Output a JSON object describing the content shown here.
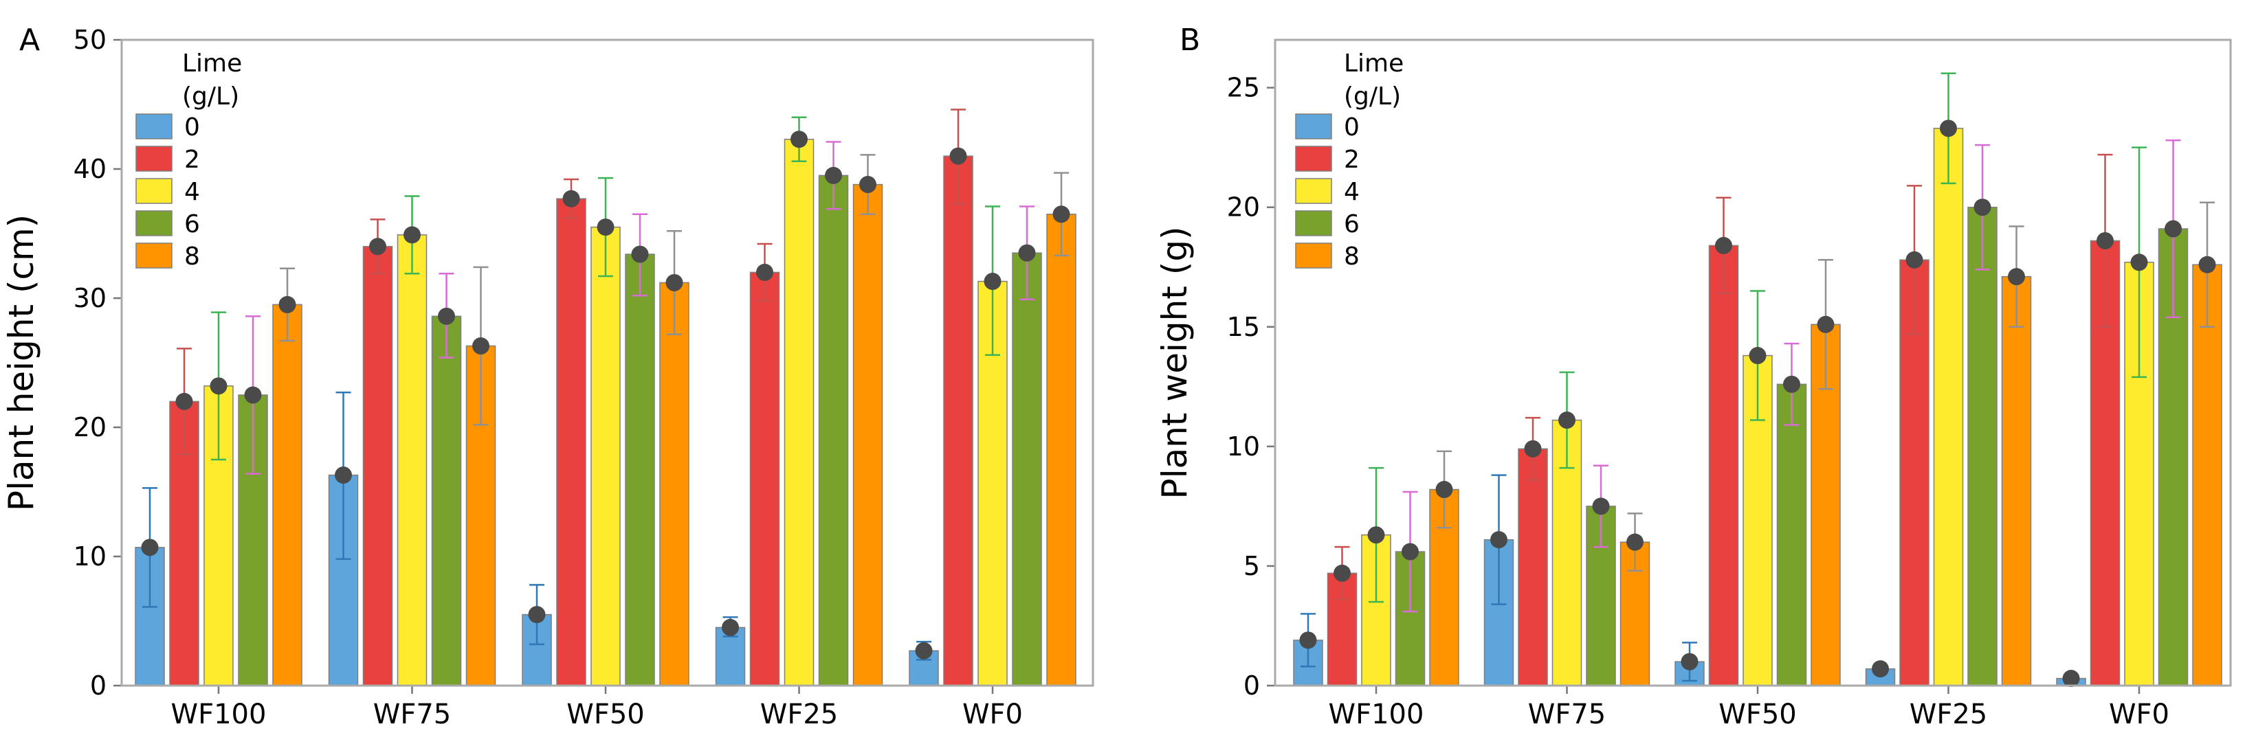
{
  "colors": {
    "lime_0": "#5DA5DA",
    "lime_2": "#E8413F",
    "lime_4": "#FFEB2E",
    "lime_6": "#79A22D",
    "lime_8": "#FF9400",
    "mean_marker": "#4A4A4A",
    "err_0": "#2F78B8",
    "err_2": "#C7504E",
    "err_4": "#3DB453",
    "err_6": "#D96BD6",
    "err_8": "#909090",
    "frame": "#AAAAAA",
    "plot_bg": "#FFFFFF"
  },
  "chart_data": [
    {
      "type": "bar",
      "panel_label": "A",
      "ylabel": "Plant height (cm)",
      "xlabel": "",
      "ylim": [
        0,
        50
      ],
      "yticks": [
        "0",
        "10",
        "20",
        "30",
        "40",
        "50"
      ],
      "categories": [
        "WF100",
        "WF75",
        "WF50",
        "WF25",
        "WF0"
      ],
      "legend": {
        "title_line1": "Lime",
        "title_line2": "(g/L)",
        "placement": "top-left"
      },
      "series": [
        {
          "name": "0",
          "values": [
            10.7,
            16.3,
            5.5,
            4.5,
            2.7
          ],
          "err_low": [
            6.1,
            9.8,
            3.2,
            3.8,
            2.0
          ],
          "err_high": [
            15.3,
            22.7,
            7.8,
            5.3,
            3.4
          ]
        },
        {
          "name": "2",
          "values": [
            22.0,
            34.0,
            37.7,
            32.0,
            41.0
          ],
          "err_low": [
            17.9,
            31.9,
            36.2,
            29.8,
            37.3
          ],
          "err_high": [
            26.1,
            36.1,
            39.2,
            34.2,
            44.6
          ]
        },
        {
          "name": "4",
          "values": [
            23.2,
            34.9,
            35.5,
            42.3,
            31.3
          ],
          "err_low": [
            17.5,
            31.9,
            31.7,
            40.6,
            25.6
          ],
          "err_high": [
            28.9,
            37.9,
            39.3,
            44.0,
            37.1
          ]
        },
        {
          "name": "6",
          "values": [
            22.5,
            28.6,
            33.4,
            39.5,
            33.5
          ],
          "err_low": [
            16.4,
            25.4,
            30.2,
            36.9,
            29.9
          ],
          "err_high": [
            28.6,
            31.9,
            36.5,
            42.1,
            37.1
          ]
        },
        {
          "name": "8",
          "values": [
            29.5,
            26.3,
            31.2,
            38.8,
            36.5
          ],
          "err_low": [
            26.7,
            20.2,
            27.2,
            36.5,
            33.3
          ],
          "err_high": [
            32.3,
            32.4,
            35.2,
            41.1,
            39.7
          ]
        }
      ]
    },
    {
      "type": "bar",
      "panel_label": "B",
      "ylabel": "Plant weight (g)",
      "xlabel": "",
      "ylim": [
        0,
        27
      ],
      "yticks": [
        "0",
        "5",
        "10",
        "15",
        "20",
        "25"
      ],
      "categories": [
        "WF100",
        "WF75",
        "WF50",
        "WF25",
        "WF0"
      ],
      "legend": {
        "title_line1": "Lime",
        "title_line2": "(g/L)",
        "placement": "top-left"
      },
      "series": [
        {
          "name": "0",
          "values": [
            1.9,
            6.1,
            1.0,
            0.7,
            0.3
          ],
          "err_low": [
            0.8,
            3.4,
            0.2,
            0.7,
            0.3
          ],
          "err_high": [
            3.0,
            8.8,
            1.8,
            0.7,
            0.3
          ]
        },
        {
          "name": "2",
          "values": [
            4.7,
            9.9,
            18.4,
            17.8,
            18.6
          ],
          "err_low": [
            3.6,
            8.6,
            16.4,
            14.7,
            15.0
          ],
          "err_high": [
            5.8,
            11.2,
            20.4,
            20.9,
            22.2
          ]
        },
        {
          "name": "4",
          "values": [
            6.3,
            11.1,
            13.8,
            23.3,
            17.7
          ],
          "err_low": [
            3.5,
            9.1,
            11.1,
            21.0,
            12.9
          ],
          "err_high": [
            9.1,
            13.1,
            16.5,
            25.6,
            22.5
          ]
        },
        {
          "name": "6",
          "values": [
            5.6,
            7.5,
            12.6,
            20.0,
            19.1
          ],
          "err_low": [
            3.1,
            5.8,
            10.9,
            17.4,
            15.4
          ],
          "err_high": [
            8.1,
            9.2,
            14.3,
            22.6,
            22.8
          ]
        },
        {
          "name": "8",
          "values": [
            8.2,
            6.0,
            15.1,
            17.1,
            17.6
          ],
          "err_low": [
            6.6,
            4.8,
            12.4,
            15.0,
            15.0
          ],
          "err_high": [
            9.8,
            7.2,
            17.8,
            19.2,
            20.2
          ]
        }
      ]
    }
  ]
}
